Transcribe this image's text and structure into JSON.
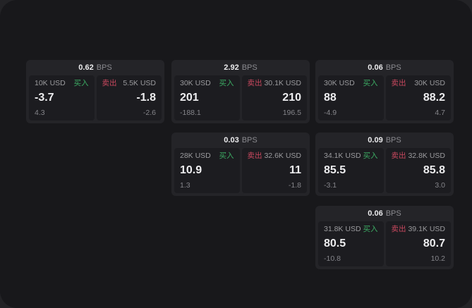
{
  "labels": {
    "bps_suffix": "BPS",
    "buy": "买入",
    "sell": "卖出"
  },
  "colors": {
    "backdrop": "#232326",
    "panel": "#18181b",
    "card": "#242428",
    "side_panel": "#1c1c20",
    "buy_green": "#3cab63",
    "sell_red": "#c9485e",
    "value_white": "#ededef",
    "label_gray": "#9b9b9e",
    "muted_gray": "#85858a"
  },
  "cards": [
    {
      "bps": "0.62",
      "buy": {
        "amount": "10K USD",
        "price": "-3.7",
        "delta": "4.3"
      },
      "sell": {
        "amount": "5.5K USD",
        "price": "-1.8",
        "delta": "-2.6"
      }
    },
    {
      "bps": "2.92",
      "buy": {
        "amount": "30K USD",
        "price": "201",
        "delta": "-188.1"
      },
      "sell": {
        "amount": "30.1K USD",
        "price": "210",
        "delta": "196.5"
      }
    },
    {
      "bps": "0.06",
      "buy": {
        "amount": "30K USD",
        "price": "88",
        "delta": "-4.9"
      },
      "sell": {
        "amount": "30K USD",
        "price": "88.2",
        "delta": "4.7"
      }
    },
    {
      "bps": "0.03",
      "buy": {
        "amount": "28K USD",
        "price": "10.9",
        "delta": "1.3"
      },
      "sell": {
        "amount": "32.6K USD",
        "price": "11",
        "delta": "-1.8"
      }
    },
    {
      "bps": "0.09",
      "buy": {
        "amount": "34.1K USD",
        "price": "85.5",
        "delta": "-3.1"
      },
      "sell": {
        "amount": "32.8K USD",
        "price": "85.8",
        "delta": "3.0"
      }
    },
    {
      "bps": "0.06",
      "buy": {
        "amount": "31.8K USD",
        "price": "80.5",
        "delta": "-10.8"
      },
      "sell": {
        "amount": "39.1K USD",
        "price": "80.7",
        "delta": "10.2"
      }
    }
  ]
}
